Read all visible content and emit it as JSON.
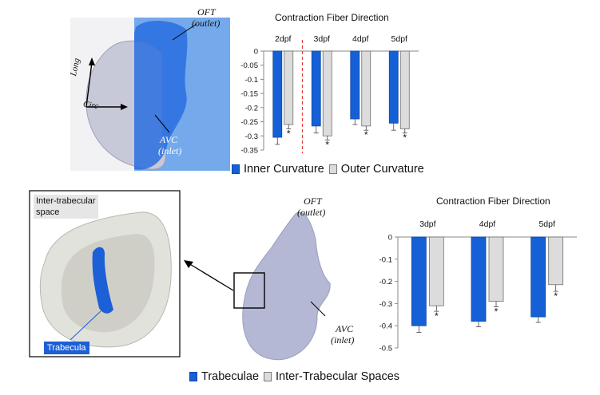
{
  "top_panel": {
    "labels": {
      "oft": "OFT",
      "oft_sub": "(outlet)",
      "avc": "AVC",
      "avc_sub": "(inlet)",
      "long": "Long",
      "circ": "Circ"
    }
  },
  "bottom_panel": {
    "labels": {
      "inter_space_line1": "Inter-trabecular",
      "inter_space_line2": "space",
      "trabecula": "Trabecula",
      "oft": "OFT",
      "oft_sub": "(outlet)",
      "avc": "AVC",
      "avc_sub": "(inlet)"
    }
  },
  "legend_top": {
    "series1": "Inner Curvature",
    "series2": "Outer Curvature"
  },
  "legend_bottom": {
    "series1": "Trabeculae",
    "series2": "Inter-Trabecular Spaces"
  },
  "colors": {
    "blue": "#1560d6",
    "gray": "#dcdcdc",
    "divider": "#e23b3b"
  },
  "chart_data": [
    {
      "type": "bar",
      "title": "Contraction Fiber Direction",
      "categories": [
        "2dpf",
        "3dpf",
        "4dpf",
        "5dpf"
      ],
      "series": [
        {
          "name": "Inner Curvature",
          "values": [
            -0.305,
            -0.265,
            -0.24,
            -0.255
          ],
          "errors": [
            0.025,
            0.025,
            0.02,
            0.025
          ]
        },
        {
          "name": "Outer Curvature",
          "values": [
            -0.26,
            -0.3,
            -0.265,
            -0.275
          ],
          "errors": [
            0.015,
            0.015,
            0.015,
            0.015
          ]
        }
      ],
      "significance": [
        "*",
        "*",
        "*",
        "*"
      ],
      "ylim": [
        -0.35,
        0
      ],
      "yticks": [
        "0",
        "-0.05",
        "-0.1",
        "-0.15",
        "-0.2",
        "-0.25",
        "-0.3",
        "-0.35"
      ],
      "ytick_values": [
        0,
        -0.05,
        -0.1,
        -0.15,
        -0.2,
        -0.25,
        -0.3,
        -0.35
      ],
      "category_labels_position": "top",
      "dashed_divider_after_category": "2dpf",
      "legend": "bottom",
      "grid": false
    },
    {
      "type": "bar",
      "title": "Contraction Fiber Direction",
      "categories": [
        "3dpf",
        "4dpf",
        "5dpf"
      ],
      "series": [
        {
          "name": "Trabeculae",
          "values": [
            -0.4,
            -0.38,
            -0.36
          ],
          "errors": [
            0.03,
            0.025,
            0.025
          ]
        },
        {
          "name": "Inter-Trabecular Spaces",
          "values": [
            -0.31,
            -0.29,
            -0.215
          ],
          "errors": [
            0.025,
            0.025,
            0.03
          ]
        }
      ],
      "significance": [
        "*",
        "*",
        "*"
      ],
      "ylim": [
        -0.5,
        0
      ],
      "yticks": [
        "0",
        "-0.1",
        "-0.2",
        "-0.3",
        "-0.4",
        "-0.5"
      ],
      "ytick_values": [
        0,
        -0.1,
        -0.2,
        -0.3,
        -0.4,
        -0.5
      ],
      "category_labels_position": "top",
      "legend": "bottom",
      "grid": false
    }
  ]
}
